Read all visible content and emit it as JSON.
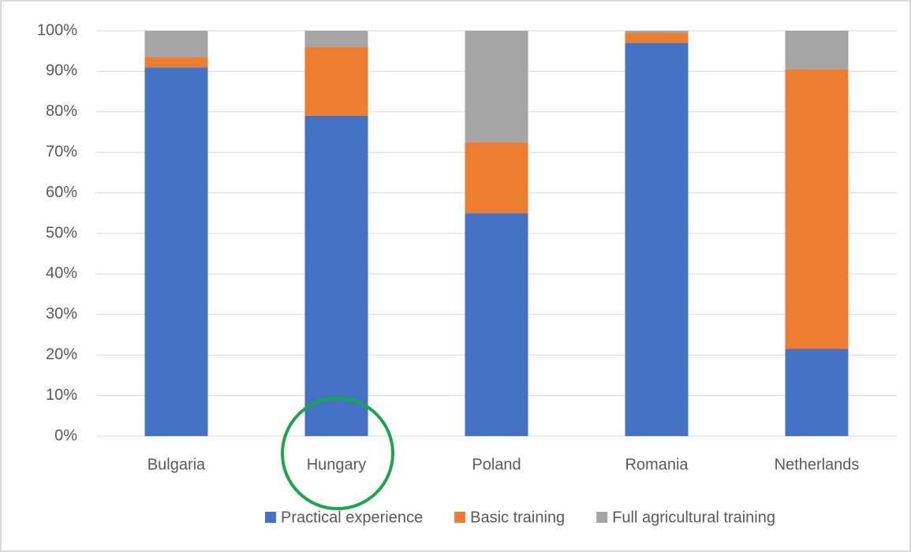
{
  "chart_data": {
    "type": "stacked_bar",
    "categories": [
      "Bulgaria",
      "Hungary",
      "Poland",
      "Romania",
      "Netherlands"
    ],
    "series": [
      {
        "name": "Practical experience",
        "color": "#4472c4",
        "values": [
          91,
          79,
          55,
          97,
          21.5
        ]
      },
      {
        "name": "Basic training",
        "color": "#ed7d31",
        "values": [
          2.5,
          17,
          17.5,
          2.5,
          69
        ]
      },
      {
        "name": "Full agricultural training",
        "color": "#a5a5a5",
        "values": [
          6.5,
          4,
          27.5,
          0.5,
          9.5
        ]
      }
    ],
    "ylim": [
      0,
      100
    ],
    "yticks": [
      {
        "value": 0,
        "label": "0%"
      },
      {
        "value": 10,
        "label": "10%"
      },
      {
        "value": 20,
        "label": "20%"
      },
      {
        "value": 30,
        "label": "30%"
      },
      {
        "value": 40,
        "label": "40%"
      },
      {
        "value": 50,
        "label": "50%"
      },
      {
        "value": 60,
        "label": "60%"
      },
      {
        "value": 70,
        "label": "70%"
      },
      {
        "value": 80,
        "label": "80%"
      },
      {
        "value": 90,
        "label": "90%"
      },
      {
        "value": 100,
        "label": "100%"
      }
    ],
    "grid": true,
    "legend": "bottom"
  }
}
